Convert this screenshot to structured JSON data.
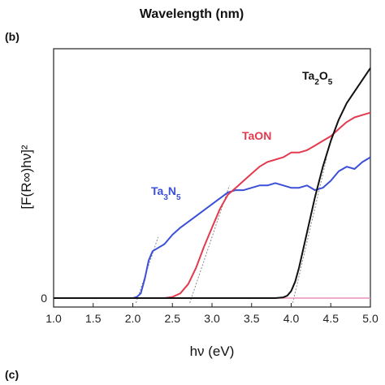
{
  "top_label": "Wavelength (nm)",
  "panel_label_top": "(b)",
  "panel_label_bottom": "(c)",
  "chart_data": {
    "type": "line",
    "xlabel": "hν (eV)",
    "ylabel": "[F(R∞)hν]²",
    "xlim": [
      1.0,
      5.0
    ],
    "ylim": [
      0,
      1.0
    ],
    "x_ticks": [
      "1.0",
      "1.5",
      "2.0",
      "2.5",
      "3.0",
      "3.5",
      "4.0",
      "4.5",
      "5.0"
    ],
    "y_ticks": [
      "0"
    ],
    "grid": false,
    "series": [
      {
        "name": "Ta3N5",
        "color": "#3b4fd8",
        "x": [
          1.0,
          1.5,
          2.0,
          2.05,
          2.1,
          2.15,
          2.2,
          2.25,
          2.3,
          2.4,
          2.5,
          2.6,
          2.8,
          3.0,
          3.2,
          3.3,
          3.4,
          3.5,
          3.6,
          3.7,
          3.8,
          3.9,
          4.0,
          4.1,
          4.2,
          4.3,
          4.4,
          4.5,
          4.6,
          4.7,
          4.8,
          4.9,
          5.0
        ],
        "y": [
          0.0,
          0.0,
          0.0,
          0.005,
          0.02,
          0.08,
          0.16,
          0.2,
          0.21,
          0.23,
          0.27,
          0.3,
          0.35,
          0.4,
          0.45,
          0.46,
          0.46,
          0.47,
          0.48,
          0.48,
          0.49,
          0.48,
          0.47,
          0.47,
          0.48,
          0.46,
          0.47,
          0.5,
          0.54,
          0.56,
          0.55,
          0.58,
          0.6
        ]
      },
      {
        "name": "TaON",
        "color": "#e23a4e",
        "x": [
          1.0,
          2.0,
          2.4,
          2.5,
          2.6,
          2.7,
          2.8,
          2.9,
          3.0,
          3.1,
          3.2,
          3.3,
          3.4,
          3.5,
          3.6,
          3.7,
          3.8,
          3.9,
          4.0,
          4.1,
          4.2,
          4.3,
          4.4,
          4.5,
          4.6,
          4.7,
          4.8,
          4.9,
          5.0
        ],
        "y": [
          0.0,
          0.0,
          0.0,
          0.005,
          0.02,
          0.06,
          0.13,
          0.22,
          0.3,
          0.38,
          0.44,
          0.47,
          0.5,
          0.53,
          0.56,
          0.58,
          0.59,
          0.6,
          0.62,
          0.62,
          0.63,
          0.65,
          0.67,
          0.69,
          0.72,
          0.75,
          0.77,
          0.78,
          0.79
        ]
      },
      {
        "name": "Ta2O5",
        "color": "#111111",
        "x": [
          1.0,
          3.0,
          3.8,
          3.9,
          3.95,
          4.0,
          4.05,
          4.1,
          4.2,
          4.3,
          4.4,
          4.5,
          4.6,
          4.7,
          4.8,
          4.9,
          5.0
        ],
        "y": [
          0.0,
          0.0,
          0.0,
          0.003,
          0.01,
          0.03,
          0.07,
          0.13,
          0.28,
          0.43,
          0.56,
          0.67,
          0.76,
          0.83,
          0.88,
          0.93,
          0.98
        ]
      }
    ],
    "annotations": [
      {
        "text_parts": [
          [
            "Ta",
            false
          ],
          [
            "3",
            true
          ],
          [
            "N",
            false
          ],
          [
            "5",
            true
          ]
        ],
        "series": "Ta3N5"
      },
      {
        "text_parts": [
          [
            "TaON",
            false
          ]
        ],
        "series": "TaON"
      },
      {
        "text_parts": [
          [
            "Ta",
            false
          ],
          [
            "2",
            true
          ],
          [
            "O",
            false
          ],
          [
            "5",
            true
          ]
        ],
        "series": "Ta2O5"
      }
    ],
    "baseline_color": "#e890b8"
  }
}
